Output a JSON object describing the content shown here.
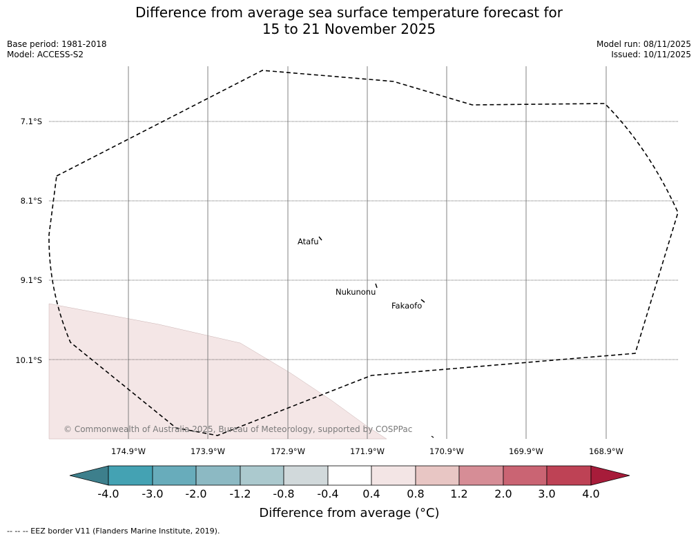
{
  "title": {
    "line1": "Difference from average sea surface temperature forecast for",
    "line2": "15 to 21 November 2025"
  },
  "meta": {
    "base_period": "Base period: 1981-2018",
    "model": "Model: ACCESS-S2",
    "model_run": "Model run: 08/11/2025",
    "issued": "Issued: 10/11/2025"
  },
  "map": {
    "lat_labels": [
      "7.1°S",
      "8.1°S",
      "9.1°S",
      "10.1°S"
    ],
    "lon_labels": [
      "174.9°W",
      "173.9°W",
      "172.9°W",
      "171.9°W",
      "170.9°W",
      "169.9°W",
      "168.9°W"
    ],
    "places": [
      {
        "name": "Atafu"
      },
      {
        "name": "Nukunonu"
      },
      {
        "name": "Fakaofo"
      }
    ],
    "copyright": "© Commonwealth of Australia 2025, Bureau of Meteorology, supported by COSPPac",
    "anomaly_region_value_range": "0.4 to 0.8"
  },
  "colorbar": {
    "ticks": [
      "-4.0",
      "-3.0",
      "-2.0",
      "-1.2",
      "-0.8",
      "-0.4",
      "0.4",
      "0.8",
      "1.2",
      "2.0",
      "3.0",
      "4.0"
    ],
    "colors": [
      "#3d7f8c",
      "#44a2b3",
      "#68acbb",
      "#8cb9c3",
      "#abc9ce",
      "#d1d9db",
      "#ffffff",
      "#f3e5e5",
      "#e8c6c4",
      "#d68d96",
      "#ca6473",
      "#be4255",
      "#a71c3a"
    ],
    "label": "Difference from average (°C)"
  },
  "footnote": "--  --  -- EEZ border V11 (Flanders Marine Institute, 2019)."
}
